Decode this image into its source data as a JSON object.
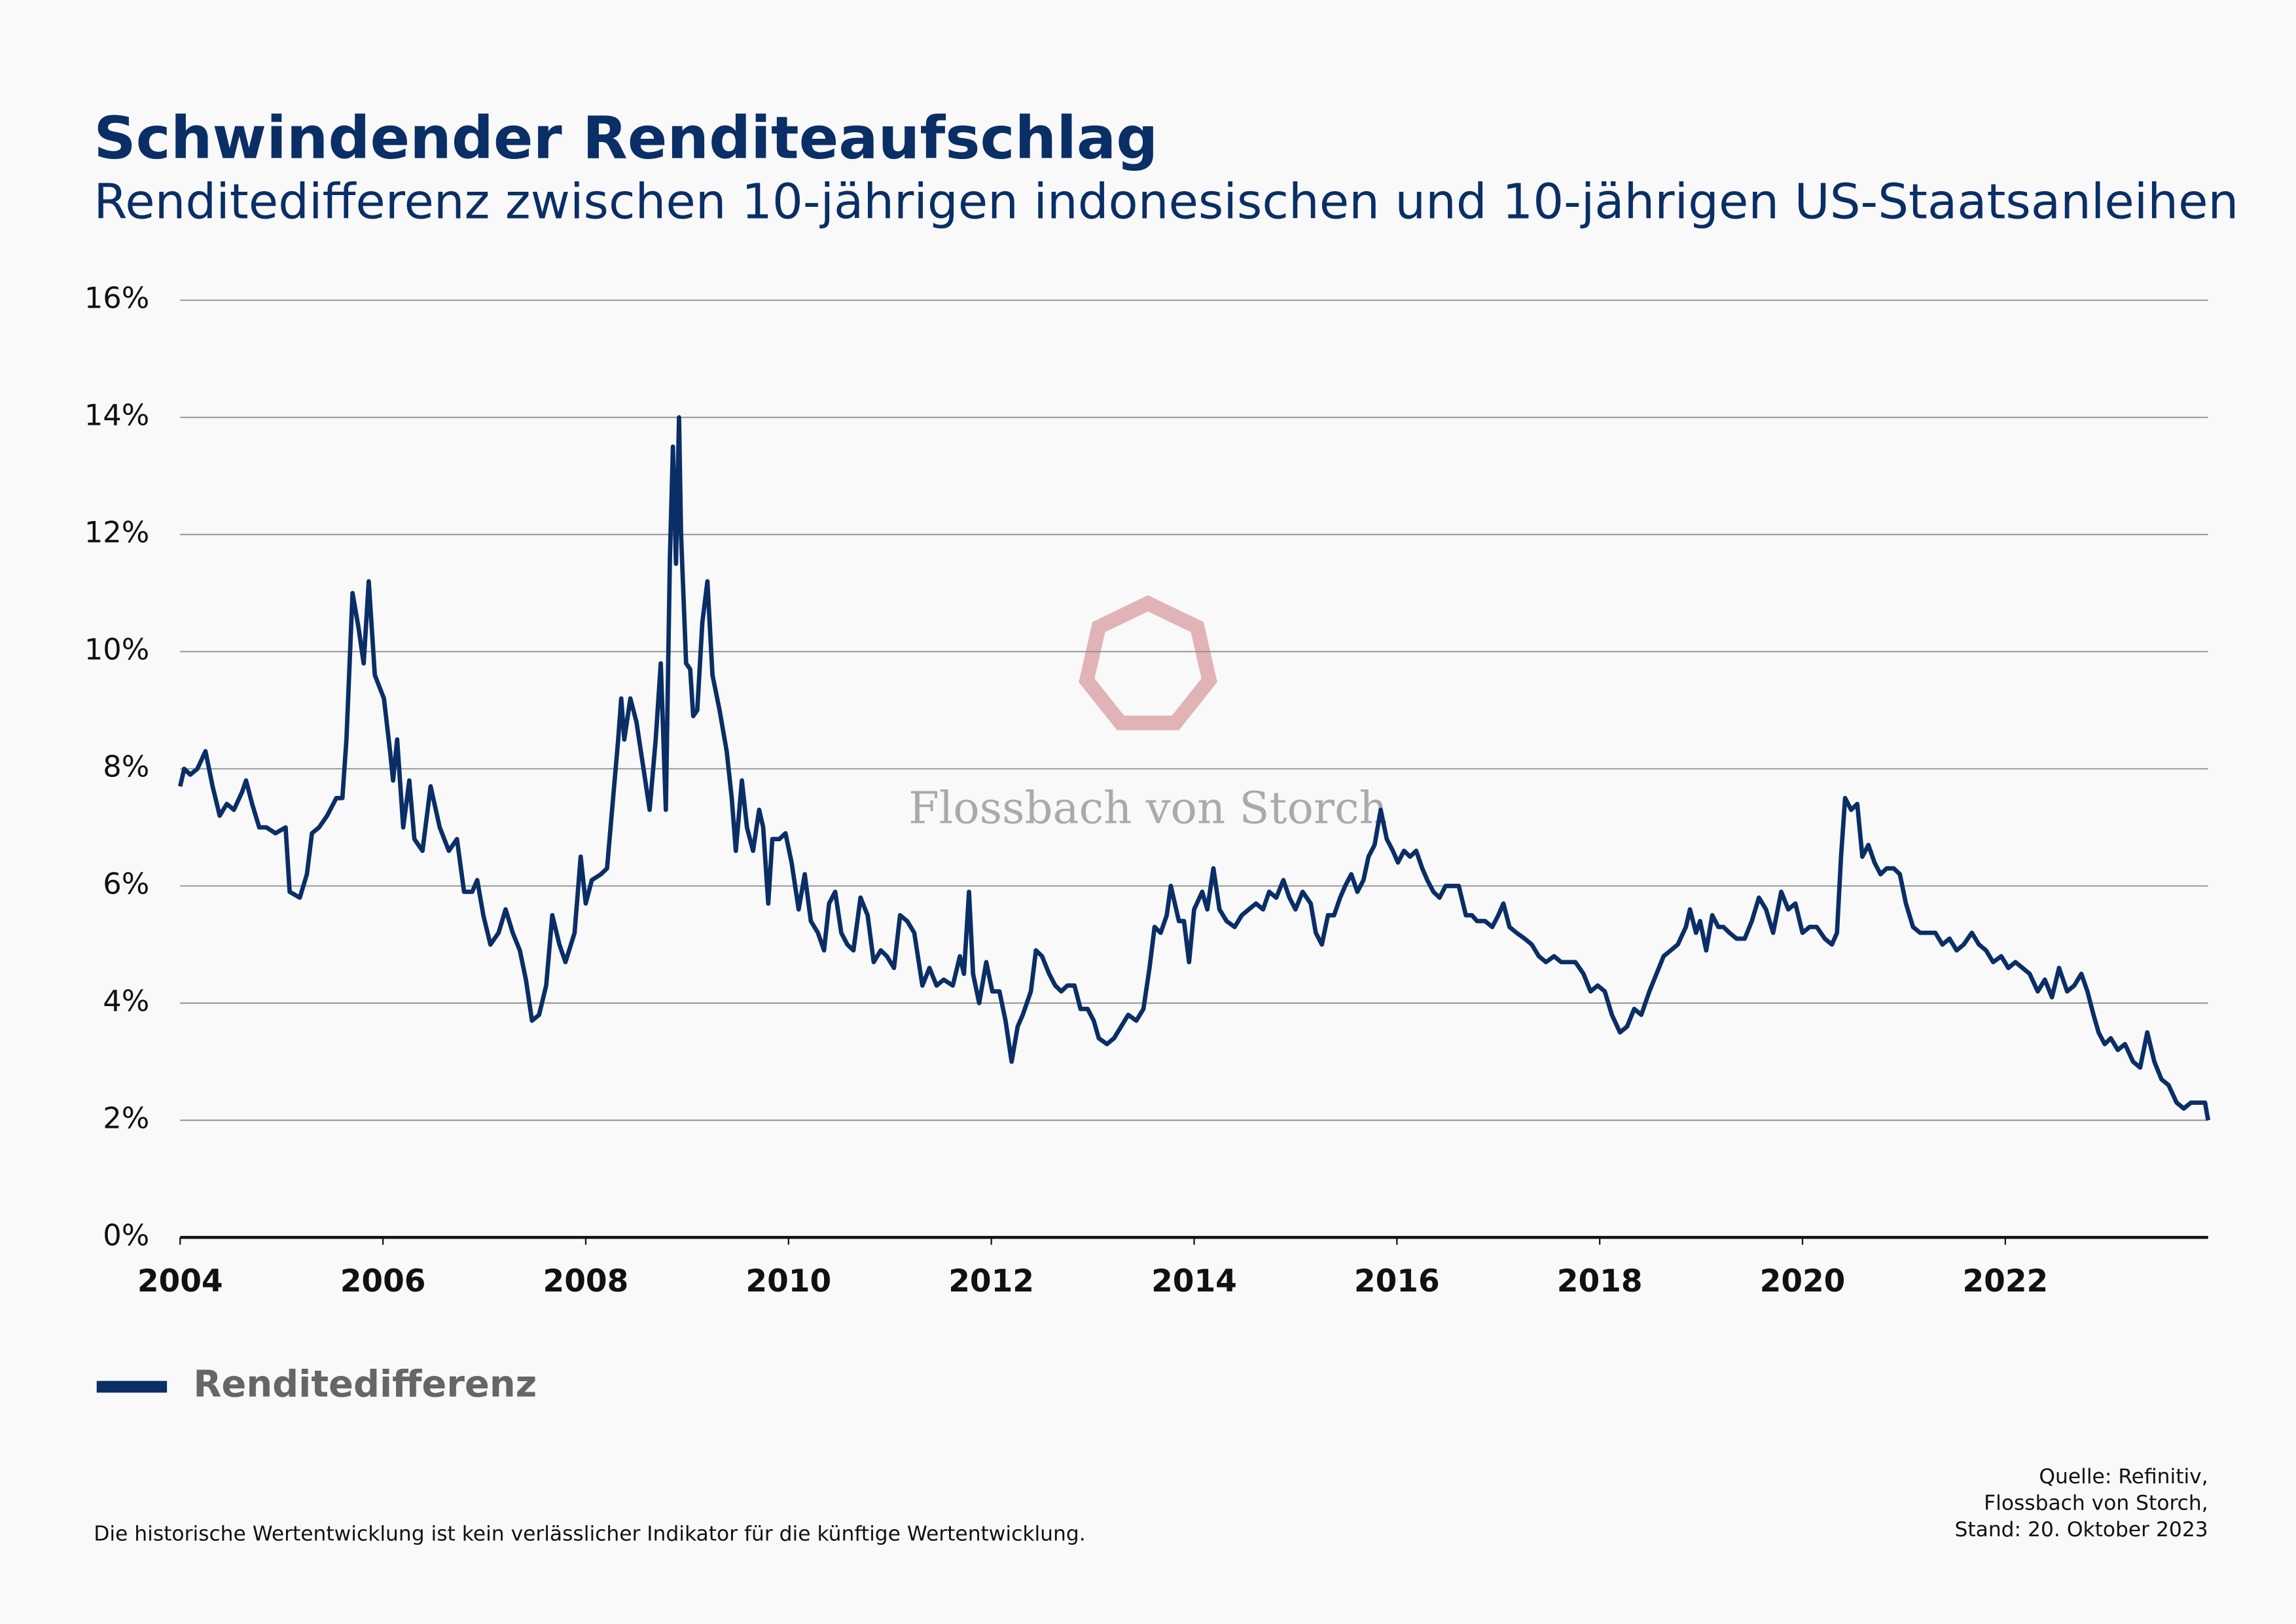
{
  "chart_data": {
    "type": "line",
    "title": "Schwindender Renditeaufschlag",
    "subtitle": "Renditedifferenz zwischen 10-jährigen indonesischen und 10-jährigen US-Staatsanleihen",
    "watermark": "Flossbach von Storch",
    "source": [
      "Quelle: Refinitiv,",
      "Flossbach von Storch,",
      "Stand: 20. Oktober 2023"
    ],
    "disclaimer": "Die historische Wertentwicklung ist kein verlässlicher Indikator für die künftige Wertentwicklung.",
    "xlim": [
      2004,
      2024
    ],
    "xticks": [
      2004,
      2006,
      2008,
      2010,
      2012,
      2014,
      2016,
      2018,
      2020,
      2022
    ],
    "ylim": [
      0,
      16
    ],
    "yticks": [
      {
        "value": 0,
        "label": "0%"
      },
      {
        "value": 2,
        "label": "2%"
      },
      {
        "value": 4,
        "label": "4%"
      },
      {
        "value": 6,
        "label": "6%"
      },
      {
        "value": 8,
        "label": "8%"
      },
      {
        "value": 10,
        "label": "10%"
      },
      {
        "value": 12,
        "label": "12%"
      },
      {
        "value": 14,
        "label": "14%"
      },
      {
        "value": 16,
        "label": "16%"
      }
    ],
    "grid": true,
    "legend": "bottom-left",
    "x": [
      2004.0,
      2004.04,
      2004.1,
      2004.17,
      2004.25,
      2004.32,
      2004.39,
      2004.46,
      2004.53,
      2004.61,
      2004.65,
      2004.71,
      2004.78,
      2004.85,
      2004.94,
      2005.04,
      2005.08,
      2005.18,
      2005.25,
      2005.3,
      2005.37,
      2005.45,
      2005.54,
      2005.6,
      2005.64,
      2005.7,
      2005.76,
      2005.81,
      2005.86,
      2005.92,
      2006.01,
      2006.07,
      2006.1,
      2006.14,
      2006.2,
      2006.26,
      2006.31,
      2006.39,
      2006.47,
      2006.56,
      2006.65,
      2006.73,
      2006.8,
      2006.88,
      2006.93,
      2006.99,
      2007.06,
      2007.14,
      2007.21,
      2007.28,
      2007.35,
      2007.41,
      2007.47,
      2007.54,
      2007.61,
      2007.67,
      2007.74,
      2007.8,
      2007.89,
      2007.95,
      2008.0,
      2008.06,
      2008.15,
      2008.21,
      2008.26,
      2008.32,
      2008.35,
      2008.38,
      2008.44,
      2008.5,
      2008.57,
      2008.63,
      2008.69,
      2008.74,
      2008.79,
      2008.83,
      2008.86,
      2008.89,
      2008.92,
      2008.94,
      2008.99,
      2009.03,
      2009.06,
      2009.1,
      2009.15,
      2009.2,
      2009.25,
      2009.32,
      2009.39,
      2009.44,
      2009.48,
      2009.54,
      2009.59,
      2009.65,
      2009.71,
      2009.75,
      2009.8,
      2009.84,
      2009.91,
      2009.97,
      2010.03,
      2010.1,
      2010.16,
      2010.22,
      2010.29,
      2010.35,
      2010.4,
      2010.46,
      2010.52,
      2010.58,
      2010.64,
      2010.71,
      2010.78,
      2010.84,
      2010.91,
      2010.97,
      2011.04,
      2011.1,
      2011.17,
      2011.24,
      2011.32,
      2011.39,
      2011.46,
      2011.53,
      2011.62,
      2011.69,
      2011.73,
      2011.78,
      2011.82,
      2011.88,
      2011.95,
      2012.01,
      2012.08,
      2012.14,
      2012.2,
      2012.26,
      2012.31,
      2012.39,
      2012.44,
      2012.5,
      2012.57,
      2012.63,
      2012.69,
      2012.75,
      2012.82,
      2012.88,
      2012.95,
      2013.01,
      2013.06,
      2013.14,
      2013.21,
      2013.28,
      2013.35,
      2013.43,
      2013.5,
      2013.56,
      2013.61,
      2013.67,
      2013.73,
      2013.77,
      2013.85,
      2013.9,
      2013.95,
      2014.0,
      2014.08,
      2014.13,
      2014.19,
      2014.25,
      2014.32,
      2014.4,
      2014.47,
      2014.54,
      2014.61,
      2014.68,
      2014.74,
      2014.81,
      2014.88,
      2014.94,
      2015.0,
      2015.07,
      2015.15,
      2015.2,
      2015.26,
      2015.32,
      2015.38,
      2015.44,
      2015.49,
      2015.55,
      2015.61,
      2015.67,
      2015.72,
      2015.78,
      2015.84,
      2015.9,
      2015.96,
      2016.01,
      2016.07,
      2016.13,
      2016.19,
      2016.25,
      2016.3,
      2016.36,
      2016.42,
      2016.48,
      2016.54,
      2016.61,
      2016.68,
      2016.74,
      2016.79,
      2016.87,
      2016.94,
      2017.0,
      2017.05,
      2017.11,
      2017.18,
      2017.26,
      2017.33,
      2017.4,
      2017.47,
      2017.55,
      2017.62,
      2017.69,
      2017.76,
      2017.84,
      2017.91,
      2017.98,
      2018.05,
      2018.12,
      2018.2,
      2018.27,
      2018.34,
      2018.41,
      2018.49,
      2018.56,
      2018.63,
      2018.7,
      2018.77,
      2018.85,
      2018.89,
      2018.95,
      2018.99,
      2019.05,
      2019.11,
      2019.17,
      2019.22,
      2019.28,
      2019.35,
      2019.43,
      2019.5,
      2019.57,
      2019.64,
      2019.71,
      2019.79,
      2019.86,
      2019.93,
      2020.0,
      2020.07,
      2020.14,
      2020.22,
      2020.29,
      2020.34,
      2020.38,
      2020.42,
      2020.48,
      2020.54,
      2020.59,
      2020.65,
      2020.71,
      2020.77,
      2020.83,
      2020.9,
      2020.96,
      2021.02,
      2021.09,
      2021.16,
      2021.23,
      2021.31,
      2021.38,
      2021.45,
      2021.52,
      2021.59,
      2021.67,
      2021.74,
      2021.81,
      2021.88,
      2021.96,
      2022.03,
      2022.1,
      2022.17,
      2022.24,
      2022.32,
      2022.39,
      2022.46,
      2022.53,
      2022.61,
      2022.68,
      2022.75,
      2022.81,
      2022.87,
      2022.92,
      2022.98,
      2023.04,
      2023.11,
      2023.18,
      2023.26,
      2023.33,
      2023.4,
      2023.47,
      2023.54,
      2023.61,
      2023.69,
      2023.76,
      2023.83,
      2023.9,
      2023.97,
      2024.0
    ],
    "series": [
      {
        "name": "Renditedifferenz",
        "color": "#0a2e66",
        "values": [
          7.7,
          8.0,
          7.9,
          8.0,
          8.3,
          7.7,
          7.2,
          7.4,
          7.3,
          7.6,
          7.8,
          7.4,
          7.0,
          7.0,
          6.9,
          7.0,
          5.9,
          5.8,
          6.2,
          6.9,
          7.0,
          7.2,
          7.5,
          7.5,
          8.5,
          11.0,
          10.4,
          9.8,
          11.2,
          9.6,
          9.2,
          8.3,
          7.8,
          8.5,
          7.0,
          7.8,
          6.8,
          6.6,
          7.7,
          7.0,
          6.6,
          6.8,
          5.9,
          5.9,
          6.1,
          5.5,
          5.0,
          5.2,
          5.6,
          5.2,
          4.9,
          4.4,
          3.7,
          3.8,
          4.3,
          5.5,
          5.0,
          4.7,
          5.2,
          6.5,
          5.7,
          6.1,
          6.2,
          6.3,
          7.3,
          8.5,
          9.2,
          8.5,
          9.2,
          8.8,
          8.0,
          7.3,
          8.5,
          9.8,
          7.3,
          11.6,
          13.5,
          11.5,
          14.0,
          12.0,
          9.8,
          9.7,
          8.9,
          9.0,
          10.5,
          11.2,
          9.6,
          9.0,
          8.3,
          7.5,
          6.6,
          7.8,
          7.0,
          6.6,
          7.3,
          7.0,
          5.7,
          6.8,
          6.8,
          6.9,
          6.4,
          5.6,
          6.2,
          5.4,
          5.2,
          4.9,
          5.7,
          5.9,
          5.2,
          5.0,
          4.9,
          5.8,
          5.5,
          4.7,
          4.9,
          4.8,
          4.6,
          5.5,
          5.4,
          5.2,
          4.3,
          4.6,
          4.3,
          4.4,
          4.3,
          4.8,
          4.5,
          5.9,
          4.5,
          4.0,
          4.7,
          4.2,
          4.2,
          3.7,
          3.0,
          3.6,
          3.8,
          4.2,
          4.9,
          4.8,
          4.5,
          4.3,
          4.2,
          4.3,
          4.3,
          3.9,
          3.9,
          3.7,
          3.4,
          3.3,
          3.4,
          3.6,
          3.8,
          3.7,
          3.9,
          4.6,
          5.3,
          5.2,
          5.5,
          6.0,
          5.4,
          5.4,
          4.7,
          5.6,
          5.9,
          5.6,
          6.3,
          5.6,
          5.4,
          5.3,
          5.5,
          5.6,
          5.7,
          5.6,
          5.9,
          5.8,
          6.1,
          5.8,
          5.6,
          5.9,
          5.7,
          5.2,
          5.0,
          5.5,
          5.5,
          5.8,
          6.0,
          6.2,
          5.9,
          6.1,
          6.5,
          6.7,
          7.3,
          6.8,
          6.6,
          6.4,
          6.6,
          6.5,
          6.6,
          6.3,
          6.1,
          5.9,
          5.8,
          6.0,
          6.0,
          6.0,
          5.5,
          5.5,
          5.4,
          5.4,
          5.3,
          5.5,
          5.7,
          5.3,
          5.2,
          5.1,
          5.0,
          4.8,
          4.7,
          4.8,
          4.7,
          4.7,
          4.7,
          4.5,
          4.2,
          4.3,
          4.2,
          3.8,
          3.5,
          3.6,
          3.9,
          3.8,
          4.2,
          4.5,
          4.8,
          4.9,
          5.0,
          5.3,
          5.6,
          5.2,
          5.4,
          4.9,
          5.5,
          5.3,
          5.3,
          5.2,
          5.1,
          5.1,
          5.4,
          5.8,
          5.6,
          5.2,
          5.9,
          5.6,
          5.7,
          5.2,
          5.3,
          5.3,
          5.1,
          5.0,
          5.2,
          6.5,
          7.5,
          7.3,
          7.4,
          6.5,
          6.7,
          6.4,
          6.2,
          6.3,
          6.3,
          6.2,
          5.7,
          5.3,
          5.2,
          5.2,
          5.2,
          5.0,
          5.1,
          4.9,
          5.0,
          5.2,
          5.0,
          4.9,
          4.7,
          4.8,
          4.6,
          4.7,
          4.6,
          4.5,
          4.2,
          4.4,
          4.1,
          4.6,
          4.2,
          4.3,
          4.5,
          4.2,
          3.8,
          3.5,
          3.3,
          3.4,
          3.2,
          3.3,
          3.0,
          2.9,
          3.5,
          3.0,
          2.7,
          2.6,
          2.3,
          2.2,
          2.3,
          2.3,
          2.3,
          2.0
        ]
      }
    ]
  }
}
